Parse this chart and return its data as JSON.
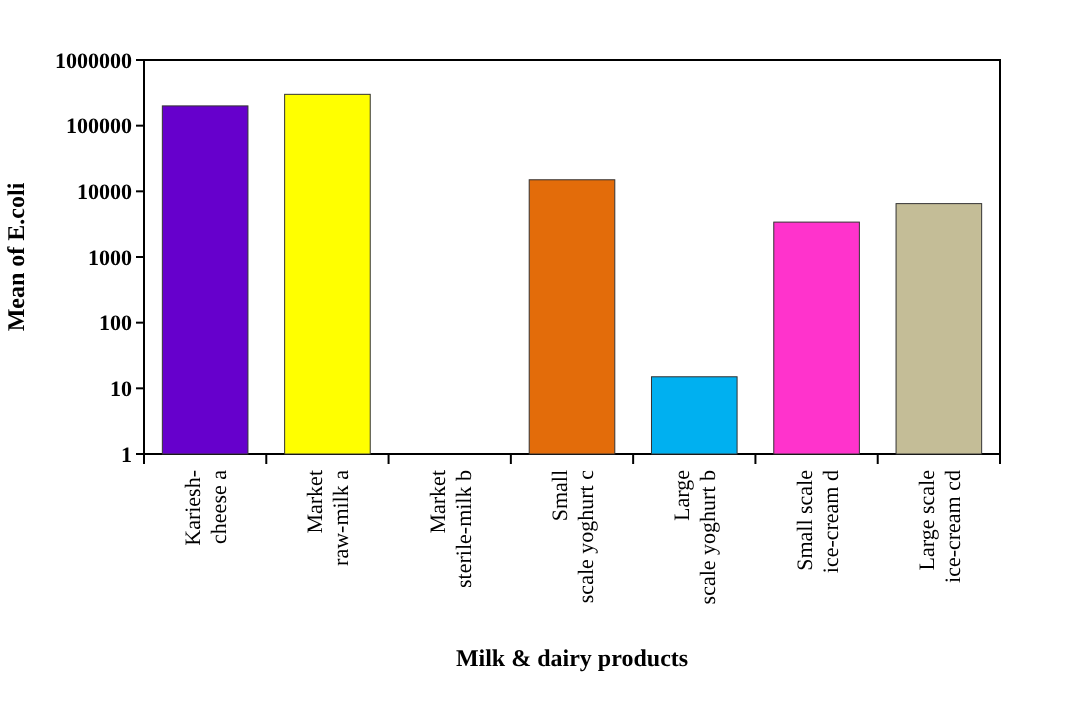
{
  "chart_data": {
    "type": "bar",
    "xlabel": "Milk & dairy products",
    "ylabel": "Mean of E.coli",
    "categories": [
      "Kariesh-\ncheese a",
      "Market\nraw-milk a",
      "Market\nsterile-milk b",
      "Small\nscale yoghurt c",
      "Large\nscale yoghurt b",
      "Small scale\nice-cream d",
      "Large scale\nice-cream cd"
    ],
    "values": [
      200000,
      300000,
      null,
      15000,
      15,
      3400,
      6500
    ],
    "colors": [
      "#6600cc",
      "#ffff00",
      null,
      "#e36c0a",
      "#00b0f0",
      "#ff33cc",
      "#c4bd97"
    ],
    "log": true,
    "ylim": [
      1,
      1000000
    ],
    "yticks": [
      1,
      10,
      100,
      1000,
      10000,
      100000,
      1000000
    ],
    "grid": false
  }
}
